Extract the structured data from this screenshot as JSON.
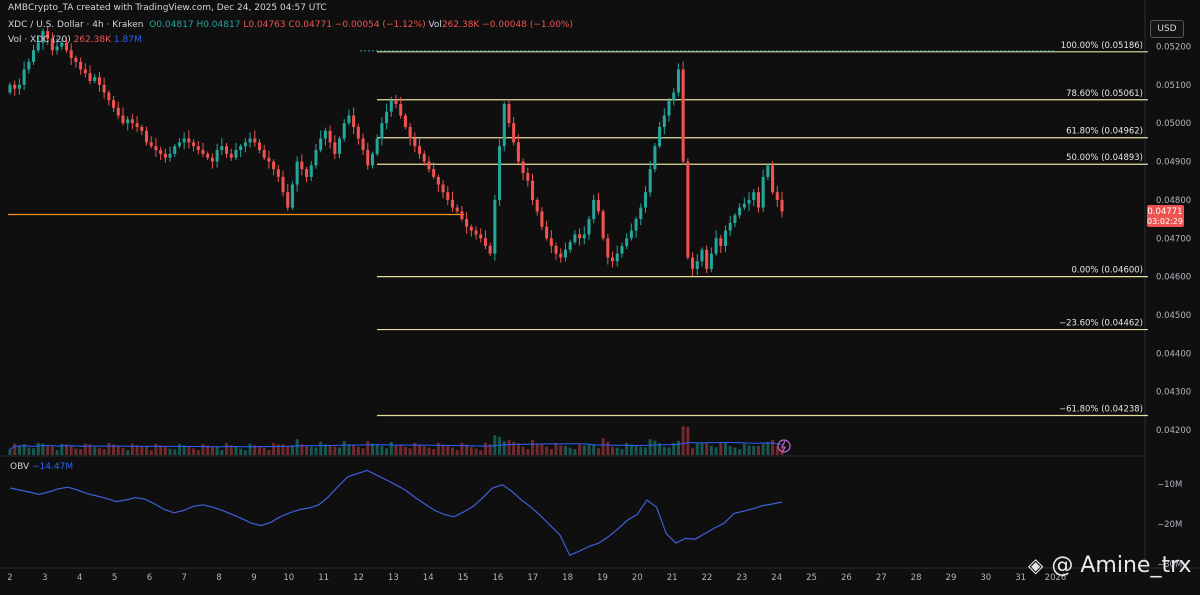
{
  "header": {
    "created": "AMBCrypto_TA created with TradingView.com, Dec 24, 2025 04:57 UTC",
    "symbol": "XDC / U.S. Dollar · 4h · Kraken",
    "o": "O0.04817",
    "h": "H0.04817",
    "l": "L0.04763",
    "c": "C0.04771",
    "change": "−0.00054 (−1.12%)",
    "vol": "Vol",
    "vol_value": "262.38K",
    "vol_change": "−0.00048 (−1.00%)",
    "vol_ma_label": "Vol · XDC (20)",
    "vol_ma_v1": "262.38K",
    "vol_ma_v2": "1.87M"
  },
  "currency": "USD",
  "obv": {
    "label": "OBV",
    "value": "−14.47M"
  },
  "watermark": {
    "handle": "@ Amine_trx"
  },
  "colors": {
    "bg": "#0f0f0f",
    "up": "#26a69a",
    "down": "#ef5350",
    "fib": "#e6dfa0",
    "support": "#f7931a",
    "obv": "#3f5fd8"
  },
  "chart_data": {
    "type": "candlestick",
    "y_axis": {
      "ticks": [
        "0.05200",
        "0.05100",
        "0.05000",
        "0.04900",
        "0.04800",
        "0.04700",
        "0.04600",
        "0.04500",
        "0.04400",
        "0.04300",
        "0.04200"
      ],
      "range": [
        0.04135,
        0.05295
      ]
    },
    "x_axis": {
      "ticks": [
        "2",
        "3",
        "4",
        "5",
        "6",
        "7",
        "8",
        "9",
        "10",
        "11",
        "12",
        "13",
        "14",
        "15",
        "16",
        "17",
        "18",
        "19",
        "20",
        "21",
        "22",
        "23",
        "24",
        "25",
        "26",
        "27",
        "28",
        "29",
        "30",
        "31",
        "2026"
      ]
    },
    "price_label": {
      "value": "0.04771",
      "countdown": "03:02:29"
    },
    "fib_levels": [
      {
        "label": "100.00% (0.05186)",
        "price": 0.05186
      },
      {
        "label": "78.60% (0.05061)",
        "price": 0.05061
      },
      {
        "label": "61.80% (0.04962)",
        "price": 0.04962
      },
      {
        "label": "50.00% (0.04893)",
        "price": 0.04893
      },
      {
        "label": "0.00% (0.04600)",
        "price": 0.046
      },
      {
        "label": "−23.60% (0.04462)",
        "price": 0.04462
      },
      {
        "label": "−61.80% (0.04238)",
        "price": 0.04238
      }
    ],
    "support_level": 0.04762,
    "closes": [
      0.051,
      0.0509,
      0.051,
      0.0514,
      0.0516,
      0.0519,
      0.0521,
      0.0524,
      0.0522,
      0.0519,
      0.052,
      0.0521,
      0.0519,
      0.0517,
      0.0516,
      0.0514,
      0.0513,
      0.0511,
      0.0512,
      0.051,
      0.0508,
      0.0506,
      0.0504,
      0.0502,
      0.05,
      0.0501,
      0.05,
      0.0499,
      0.0498,
      0.0495,
      0.0494,
      0.0493,
      0.0492,
      0.0491,
      0.0492,
      0.0494,
      0.0495,
      0.0496,
      0.0495,
      0.0494,
      0.0493,
      0.0492,
      0.0491,
      0.049,
      0.0493,
      0.0494,
      0.0492,
      0.0491,
      0.0493,
      0.0494,
      0.0495,
      0.0496,
      0.0495,
      0.0493,
      0.0491,
      0.049,
      0.0488,
      0.0486,
      0.0482,
      0.0478,
      0.0484,
      0.049,
      0.0488,
      0.0486,
      0.0489,
      0.0493,
      0.0496,
      0.0498,
      0.0495,
      0.0492,
      0.0496,
      0.05,
      0.0502,
      0.0499,
      0.0496,
      0.0493,
      0.0489,
      0.0492,
      0.0496,
      0.05,
      0.0503,
      0.0506,
      0.0505,
      0.0502,
      0.0499,
      0.0496,
      0.0494,
      0.0492,
      0.049,
      0.0488,
      0.0486,
      0.0484,
      0.0482,
      0.048,
      0.0478,
      0.0477,
      0.0475,
      0.0473,
      0.0472,
      0.0471,
      0.047,
      0.0468,
      0.0466,
      0.048,
      0.0494,
      0.0505,
      0.05,
      0.0495,
      0.049,
      0.0487,
      0.0485,
      0.048,
      0.0477,
      0.0473,
      0.047,
      0.0468,
      0.0466,
      0.0465,
      0.0467,
      0.0469,
      0.0471,
      0.047,
      0.0471,
      0.0475,
      0.048,
      0.0477,
      0.047,
      0.0465,
      0.0464,
      0.0466,
      0.0468,
      0.047,
      0.0472,
      0.0475,
      0.0478,
      0.0482,
      0.0488,
      0.0494,
      0.0499,
      0.0502,
      0.0506,
      0.0508,
      0.0514,
      0.049,
      0.0465,
      0.0462,
      0.0464,
      0.0467,
      0.0462,
      0.0466,
      0.047,
      0.0468,
      0.0472,
      0.0474,
      0.0476,
      0.0478,
      0.0479,
      0.048,
      0.0482,
      0.0478,
      0.0486,
      0.0489,
      0.0482,
      0.048,
      0.0477
    ],
    "obv_series": [
      -11,
      -11.5,
      -12,
      -12.6,
      -12,
      -11.2,
      -10.8,
      -11.5,
      -12.4,
      -13,
      -13.6,
      -14.4,
      -14,
      -13.4,
      -13.8,
      -15,
      -16.4,
      -17.2,
      -16.6,
      -15.6,
      -15.2,
      -15.8,
      -16.6,
      -17.6,
      -18.6,
      -19.8,
      -20.4,
      -19.6,
      -18.2,
      -17.2,
      -16.4,
      -16,
      -15.2,
      -13.2,
      -10.6,
      -8.2,
      -7.4,
      -6.6,
      -7.8,
      -9,
      -10.2,
      -11.6,
      -13.4,
      -15,
      -16.6,
      -17.6,
      -18.2,
      -17,
      -15.6,
      -13.4,
      -11,
      -10.2,
      -11.8,
      -14,
      -15.8,
      -18,
      -20.4,
      -22.8,
      -27.8,
      -26.8,
      -25.6,
      -24.8,
      -23.2,
      -21.2,
      -19,
      -17.6,
      -14,
      -15.8,
      -22.4,
      -24.8,
      -23.6,
      -23.8,
      -22.4,
      -21,
      -19.8,
      -17.4,
      -16.8,
      -16.2,
      -15.4,
      -15,
      -14.5
    ]
  }
}
